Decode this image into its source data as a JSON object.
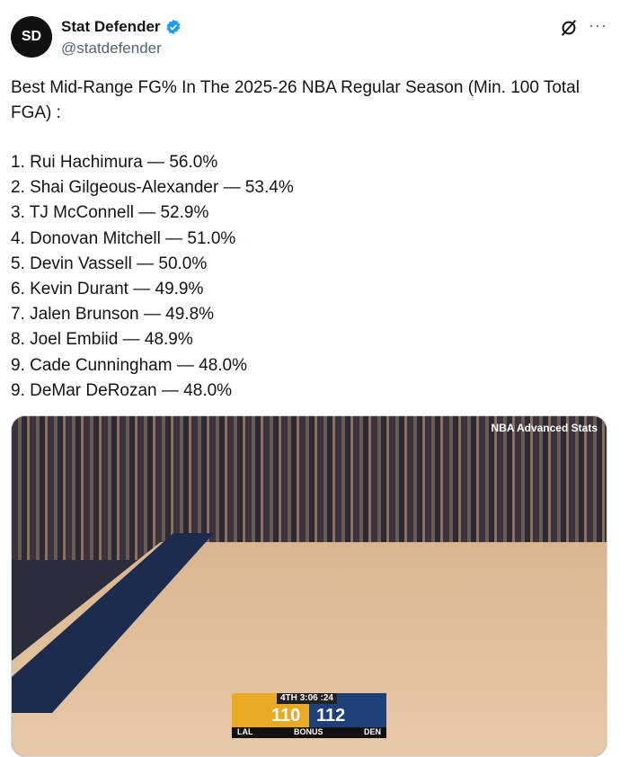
{
  "author": {
    "name": "Stat Defender",
    "handle": "@statdefender",
    "verified": true,
    "avatar_text": "SD"
  },
  "icons": {
    "grok": "grok-icon",
    "more": "more-icon",
    "verified": "verified-badge-icon"
  },
  "tweet": {
    "text": "Best Mid-Range FG% In The 2025-26 NBA Regular Season (Min. 100 Total FGA) :",
    "list": [
      "1.  Rui Hachimura — 56.0%",
      "2.  Shai Gilgeous-Alexander — 53.4%",
      "3.  TJ McConnell — 52.9%",
      "4.  Donovan Mitchell — 51.0%",
      "5.  Devin Vassell — 50.0%",
      "6.  Kevin Durant — 49.9%",
      "7.  Jalen Brunson — 49.8%",
      "8.  Joel Embiid — 48.9%",
      "9.  Cade Cunningham — 48.0%",
      "9.  DeMar DeRozan — 48.0%"
    ]
  },
  "media": {
    "watermark": "NBA Advanced Stats",
    "scoreboard": {
      "quarter": "4TH",
      "clock": "3:06",
      "shot_clock": ":24",
      "home": "LAL",
      "home_score": "110",
      "away": "DEN",
      "away_score": "112",
      "bonus": "BONUS"
    },
    "colors": {
      "lakers": "#e9a922",
      "nuggets": "#1d3f7a"
    }
  }
}
